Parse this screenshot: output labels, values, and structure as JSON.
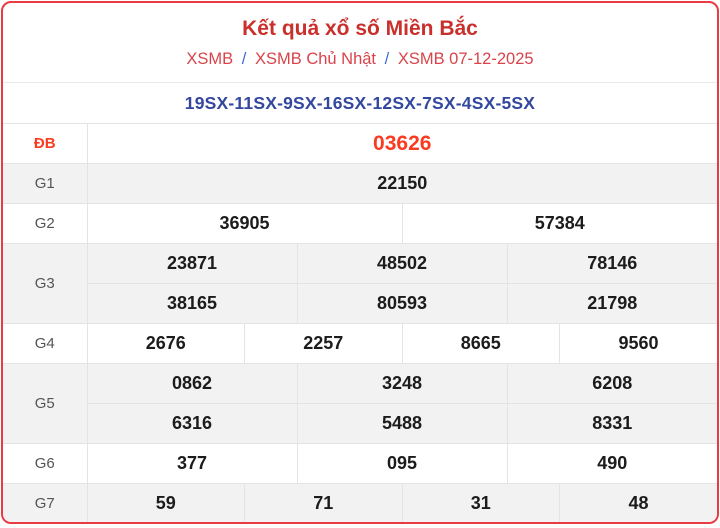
{
  "header": {
    "title": "Kết quả xổ số Miền Bắc",
    "breadcrumb": {
      "separator": "/",
      "items": [
        "XSMB",
        "XSMB Chủ Nhật",
        "XSMB 07-12-2025"
      ]
    }
  },
  "sx_line": "19SX-11SX-9SX-16SX-12SX-7SX-4SX-5SX",
  "results": {
    "db": {
      "label": "ĐB",
      "values": [
        "03626"
      ]
    },
    "g1": {
      "label": "G1",
      "values": [
        "22150"
      ]
    },
    "g2": {
      "label": "G2",
      "values": [
        "36905",
        "57384"
      ]
    },
    "g3": {
      "label": "G3",
      "row1": [
        "23871",
        "48502",
        "78146"
      ],
      "row2": [
        "38165",
        "80593",
        "21798"
      ]
    },
    "g4": {
      "label": "G4",
      "values": [
        "2676",
        "2257",
        "8665",
        "9560"
      ]
    },
    "g5": {
      "label": "G5",
      "row1": [
        "0862",
        "3248",
        "6208"
      ],
      "row2": [
        "6316",
        "5488",
        "8331"
      ]
    },
    "g6": {
      "label": "G6",
      "values": [
        "377",
        "095",
        "490"
      ]
    },
    "g7": {
      "label": "G7",
      "values": [
        "59",
        "71",
        "31",
        "48"
      ]
    }
  },
  "colors": {
    "card_border_red": "#e93b43",
    "title_red": "#c9302c",
    "breadcrumb_red": "#d9434a",
    "separator_blue": "#3b6ad4",
    "sx_navy": "#33479e",
    "special_prize_red": "#fb3b21",
    "label_gray": "#555555",
    "value_black": "#1c1c1c",
    "row_gray_bg": "#f2f2f2",
    "grid_line": "#e4e4e4"
  }
}
